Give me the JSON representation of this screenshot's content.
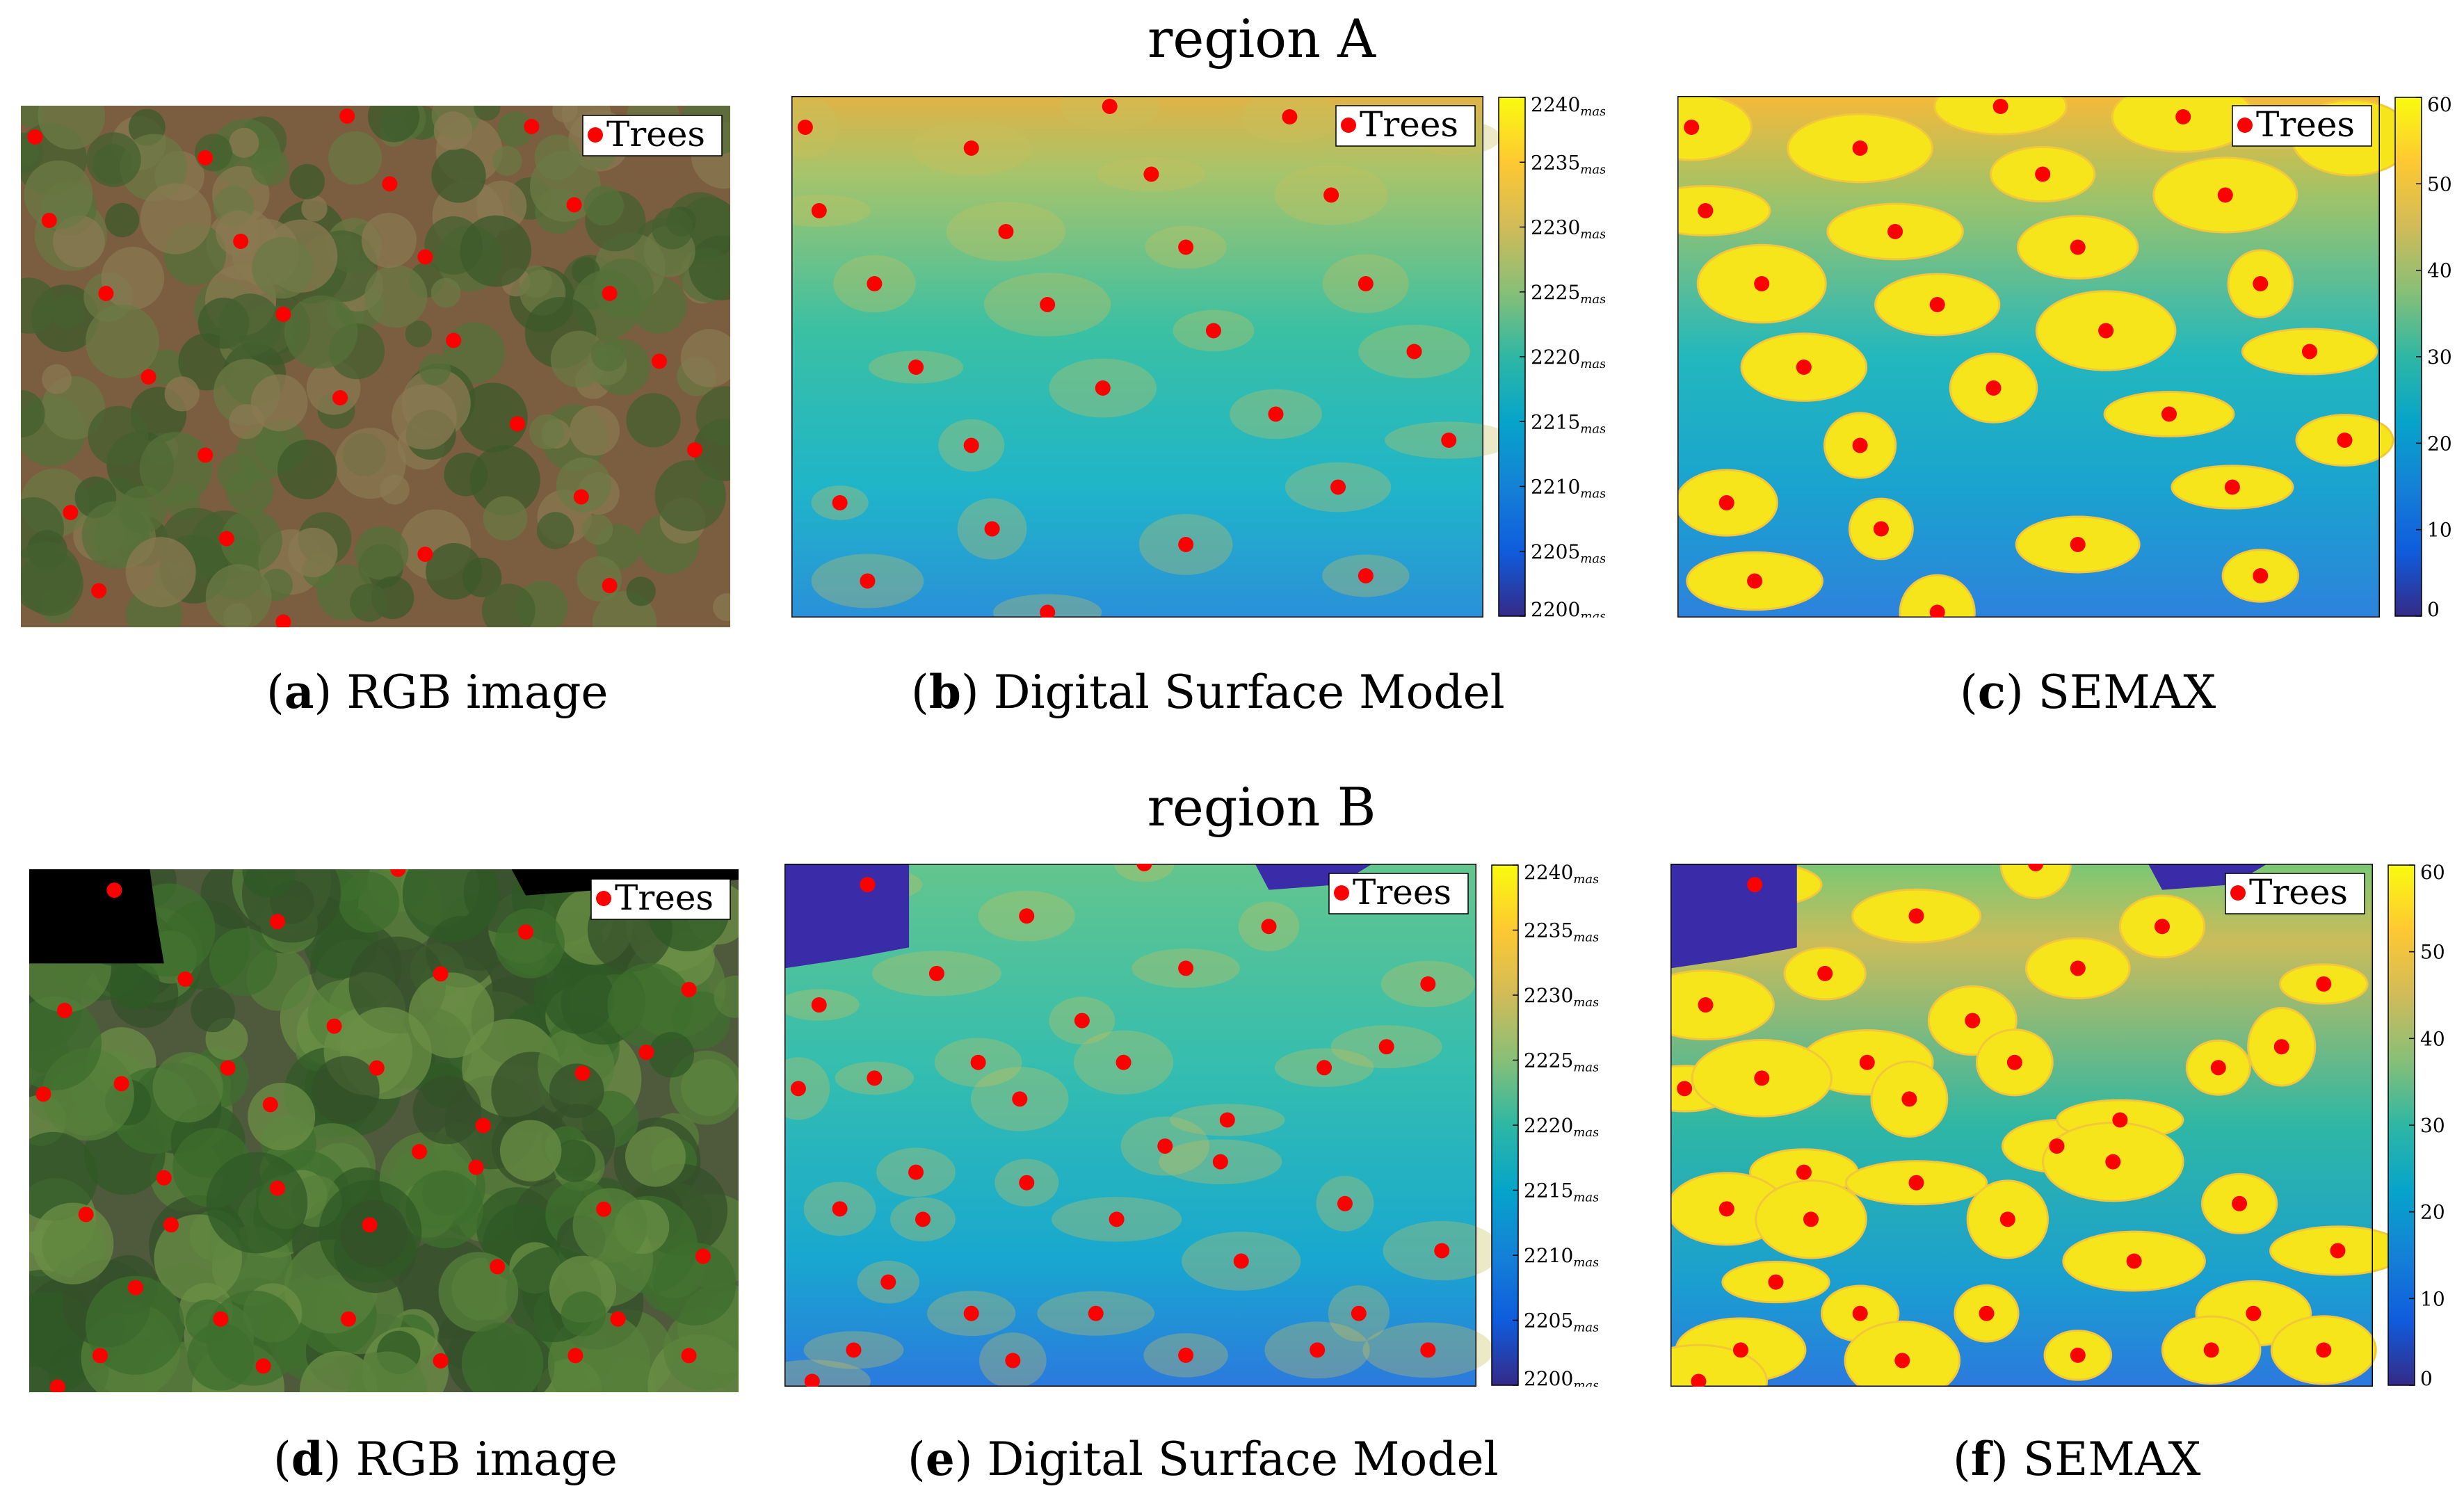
{
  "figure": {
    "rows": [
      {
        "title": "region A",
        "captions": [
          {
            "letter": "a",
            "text": "RGB image"
          },
          {
            "letter": "b",
            "text": "Digital Surface Model"
          },
          {
            "letter": "c",
            "text": "SEMAX"
          }
        ]
      },
      {
        "title": "region B",
        "captions": [
          {
            "letter": "d",
            "text": "RGB image"
          },
          {
            "letter": "e",
            "text": "Digital Surface Model"
          },
          {
            "letter": "f",
            "text": "SEMAX"
          }
        ]
      }
    ],
    "legend_label": "Trees",
    "dsm_colorbar": {
      "ticks": [
        "2240",
        "2235",
        "2230",
        "2225",
        "2220",
        "2215",
        "2210",
        "2205",
        "2200"
      ],
      "unit": "masl"
    },
    "semax_colorbar": {
      "ticks": [
        "60",
        "50",
        "40",
        "30",
        "20",
        "10",
        "0"
      ]
    },
    "colors": {
      "tree_marker": "#ff0000",
      "parula_low": "#352a87",
      "parula_mid": "#1fb5c9",
      "parula_high": "#f9fb0e"
    }
  }
}
